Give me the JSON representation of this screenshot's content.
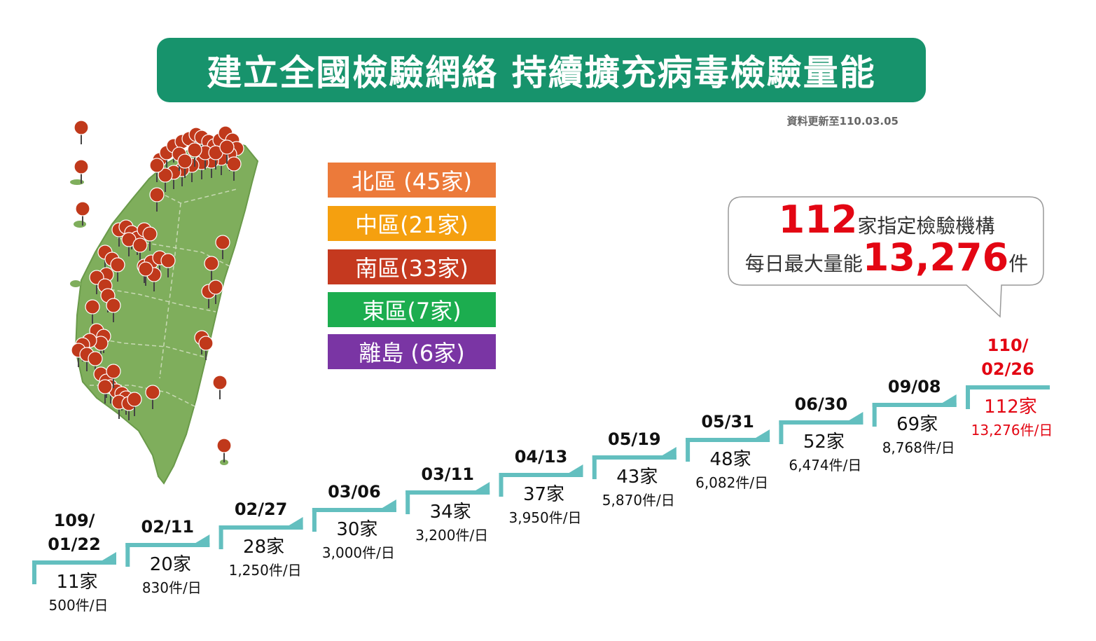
{
  "title": "建立全國檢驗網絡 持續擴充病毒檢驗量能",
  "update_note": "資料更新至110.03.05",
  "colors": {
    "banner": "#17936c",
    "map_fill": "#7fae5c",
    "pin": "#c0391b",
    "step": "#63bfbf",
    "highlight": "#e30613"
  },
  "legend": [
    {
      "label": "北區 (45家)",
      "color": "#ec7a3a"
    },
    {
      "label": "中區(21家)",
      "color": "#f5a00f"
    },
    {
      "label": "南區(33家)",
      "color": "#c5391f"
    },
    {
      "label": "東區(7家)",
      "color": "#1cad4f"
    },
    {
      "label": "離島 (6家)",
      "color": "#7a35a4"
    }
  ],
  "callout": {
    "line1_num": "112",
    "line1_text": "家指定檢驗機構",
    "line2_text": "每日最大量能",
    "line2_num": "13,276",
    "line2_unit": "件"
  },
  "timeline": [
    {
      "date": "109/\n01/22",
      "count": "11家",
      "capacity": "500件/日"
    },
    {
      "date": "02/11",
      "count": "20家",
      "capacity": "830件/日"
    },
    {
      "date": "02/27",
      "count": "28家",
      "capacity": "1,250件/日"
    },
    {
      "date": "03/06",
      "count": "30家",
      "capacity": "3,000件/日"
    },
    {
      "date": "03/11",
      "count": "34家",
      "capacity": "3,200件/日"
    },
    {
      "date": "04/13",
      "count": "37家",
      "capacity": "3,950件/日"
    },
    {
      "date": "05/19",
      "count": "43家",
      "capacity": "5,870件/日"
    },
    {
      "date": "05/31",
      "count": "48家",
      "capacity": "6,082件/日"
    },
    {
      "date": "06/30",
      "count": "52家",
      "capacity": "6,474件/日"
    },
    {
      "date": "09/08",
      "count": "69家",
      "capacity": "8,768件/日"
    },
    {
      "date": "110/\n02/26",
      "count": "112家",
      "capacity": "13,276件/日",
      "highlight": true
    }
  ]
}
